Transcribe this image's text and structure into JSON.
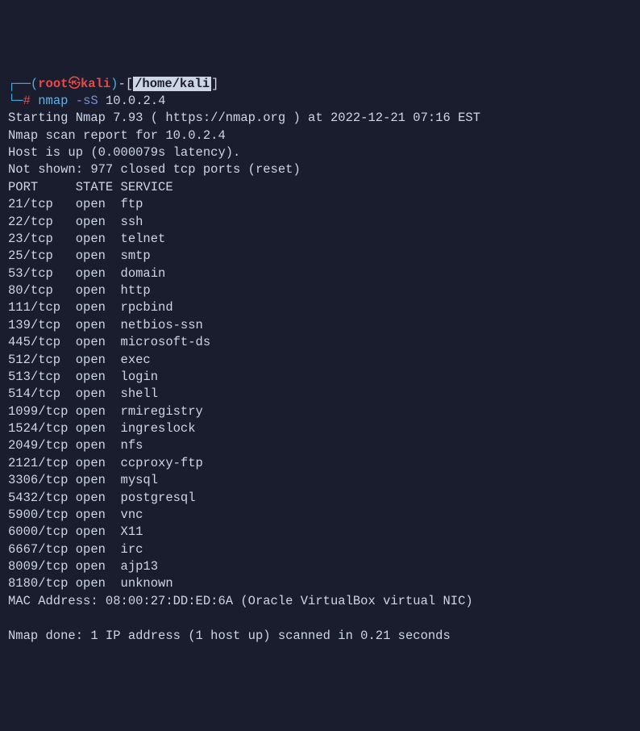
{
  "prompt": {
    "tree_top": "┌──",
    "open_paren": "(",
    "user": "root",
    "skull": "㉿",
    "host": "kali",
    "close_paren": ")",
    "dash": "-",
    "open_bracket": "[",
    "path": "/home/kali",
    "close_bracket": "]",
    "tree_bottom": "└─",
    "hash": "#",
    "command": "nmap",
    "flag": "-sS",
    "target": "10.0.2.4"
  },
  "output": {
    "line1": "Starting Nmap 7.93 ( https://nmap.org ) at 2022-12-21 07:16 EST",
    "line2": "Nmap scan report for 10.0.2.4",
    "line3": "Host is up (0.000079s latency).",
    "line4": "Not shown: 977 closed tcp ports (reset)",
    "header": "PORT     STATE SERVICE",
    "ports": [
      "21/tcp   open  ftp",
      "22/tcp   open  ssh",
      "23/tcp   open  telnet",
      "25/tcp   open  smtp",
      "53/tcp   open  domain",
      "80/tcp   open  http",
      "111/tcp  open  rpcbind",
      "139/tcp  open  netbios-ssn",
      "445/tcp  open  microsoft-ds",
      "512/tcp  open  exec",
      "513/tcp  open  login",
      "514/tcp  open  shell",
      "1099/tcp open  rmiregistry",
      "1524/tcp open  ingreslock",
      "2049/tcp open  nfs",
      "2121/tcp open  ccproxy-ftp",
      "3306/tcp open  mysql",
      "5432/tcp open  postgresql",
      "5900/tcp open  vnc",
      "6000/tcp open  X11",
      "6667/tcp open  irc",
      "8009/tcp open  ajp13",
      "8180/tcp open  unknown"
    ],
    "mac": "MAC Address: 08:00:27:DD:ED:6A (Oracle VirtualBox virtual NIC)",
    "done": "Nmap done: 1 IP address (1 host up) scanned in 0.21 seconds"
  },
  "colors": {
    "background": "#1a1d2e",
    "text": "#cdd6e4",
    "red": "#e84a4a",
    "blue": "#5db4e8",
    "purple": "#7a8dd8",
    "tree": "#4ab0e0"
  }
}
